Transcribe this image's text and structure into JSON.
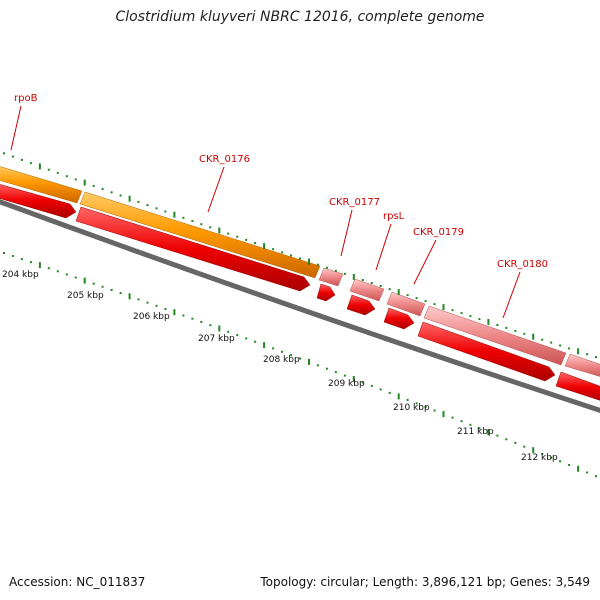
{
  "title": "Clostridium kluyveri NBRC 12016, complete genome",
  "footer": {
    "accession": "Accession: NC_011837",
    "summary": "Topology: circular; Length: 3,896,121 bp; Genes: 3,549"
  },
  "genes": [
    {
      "name": "rpoB",
      "color": "#ff9900"
    },
    {
      "name": "CKR_0176",
      "color": "#ff9900"
    },
    {
      "name": "CKR_0177",
      "color": "#ee8888"
    },
    {
      "name": "rpsL",
      "color": "#ee8888"
    },
    {
      "name": "CKR_0179",
      "color": "#ee8888"
    },
    {
      "name": "CKR_0180",
      "color": "#ee8888"
    }
  ],
  "cds_color": "#ee0000",
  "backbone_color": "#777777",
  "tick_color": "#228822",
  "kbp_labels": [
    "204 kbp",
    "205 kbp",
    "206 kbp",
    "207 kbp",
    "208 kbp",
    "209 kbp",
    "210 kbp",
    "211 kbp",
    "212 kbp"
  ]
}
